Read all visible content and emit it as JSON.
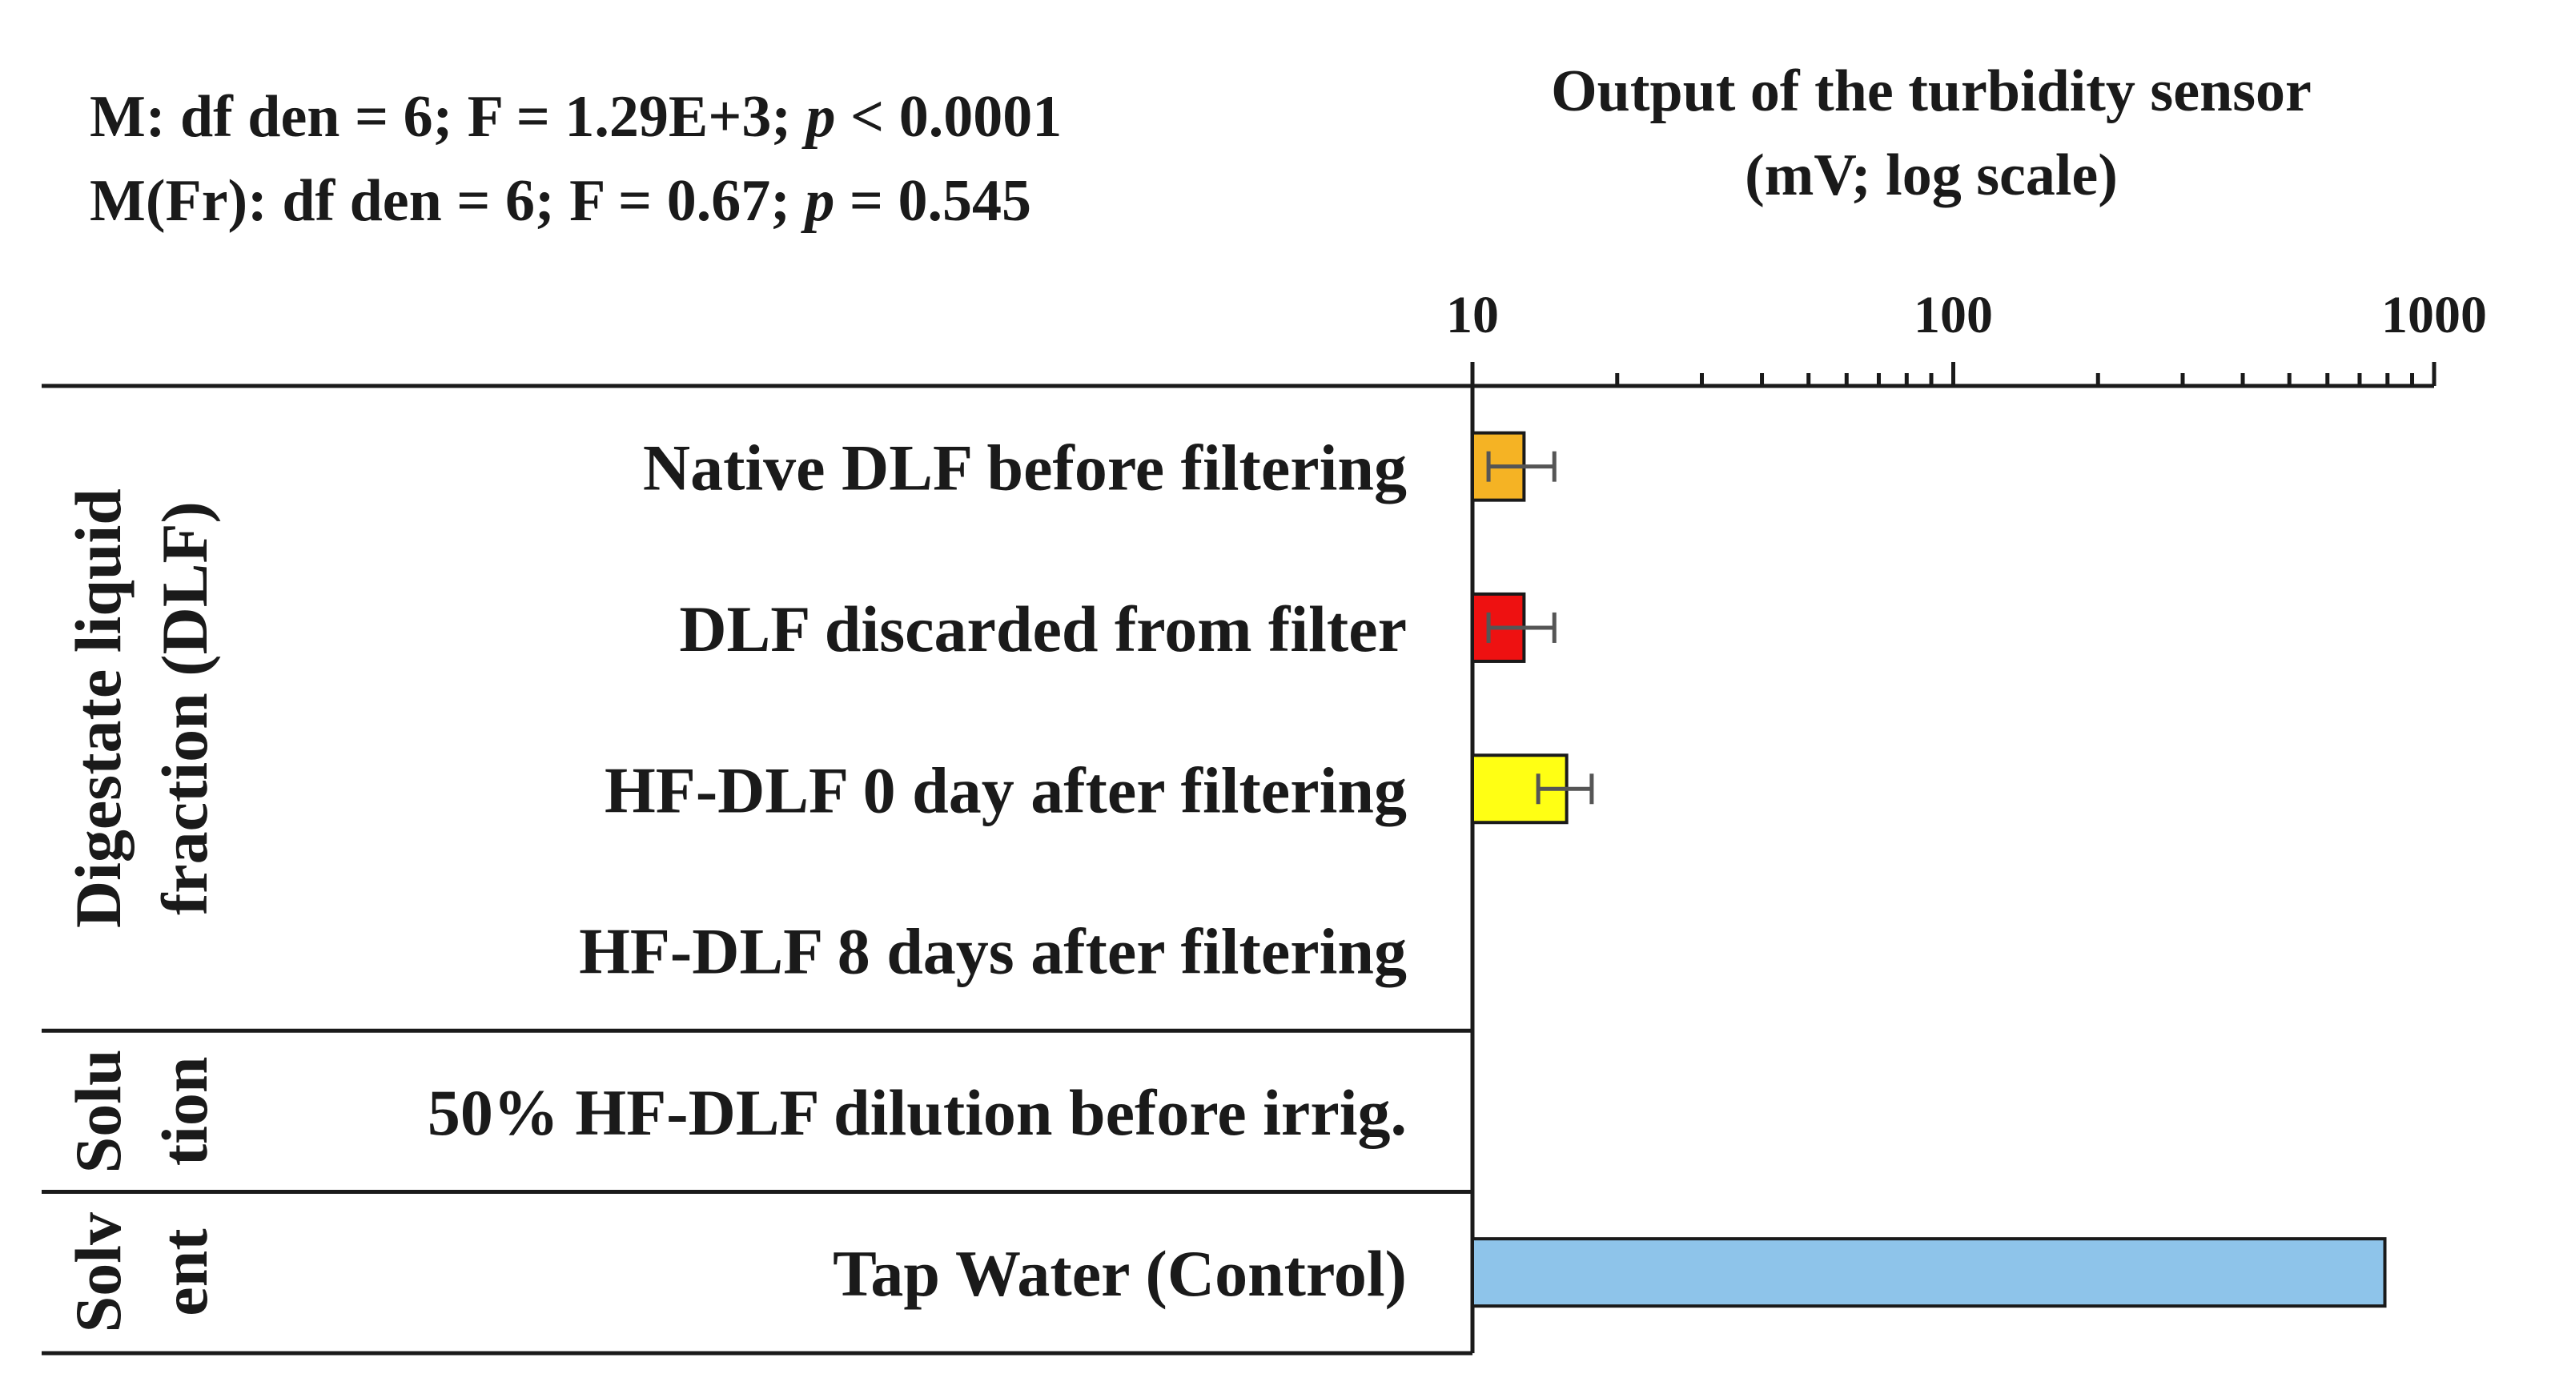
{
  "stats": {
    "line1": {
      "prefix": "M: df den = 6; F = 1.29E+3; ",
      "p_symbol": "p",
      "suffix": " < 0.0001"
    },
    "line2": {
      "prefix": "M(Fr): df den = 6; F = 0.67; ",
      "p_symbol": "p",
      "suffix": " = 0.545"
    }
  },
  "chart_data": {
    "type": "bar",
    "orientation": "horizontal",
    "title": "Output of the turbidity sensor",
    "subtitle": "(mV; log scale)",
    "x_scale": "log",
    "xlim": [
      10,
      1000
    ],
    "x_ticks": [
      10,
      100,
      1000
    ],
    "x_tick_labels": [
      "10",
      "100",
      "1000"
    ],
    "categories": [
      "Native DLF before filtering",
      "DLF discarded from filter",
      "HF-DLF 0 day after filtering",
      "HF-DLF 8 days after filtering",
      "50% HF-DLF dilution before irrig.",
      "Tap Water (Control)"
    ],
    "values": [
      12.8,
      12.8,
      15.7,
      null,
      null,
      790
    ],
    "errors": [
      2.0,
      2.0,
      2.0,
      null,
      null,
      null
    ],
    "colors": [
      "#f5b324",
      "#ee1111",
      "#ffff14",
      "#ffffff",
      "#ffffff",
      "#8ec4ea"
    ],
    "groups": [
      {
        "label_lines": [
          "Digestate liquid",
          "fraction (DLF)"
        ],
        "start": 0,
        "end": 3
      },
      {
        "label_lines": [
          "Solu",
          "tion"
        ],
        "start": 4,
        "end": 4
      },
      {
        "label_lines": [
          "Solv",
          "ent"
        ],
        "start": 5,
        "end": 5
      }
    ]
  }
}
